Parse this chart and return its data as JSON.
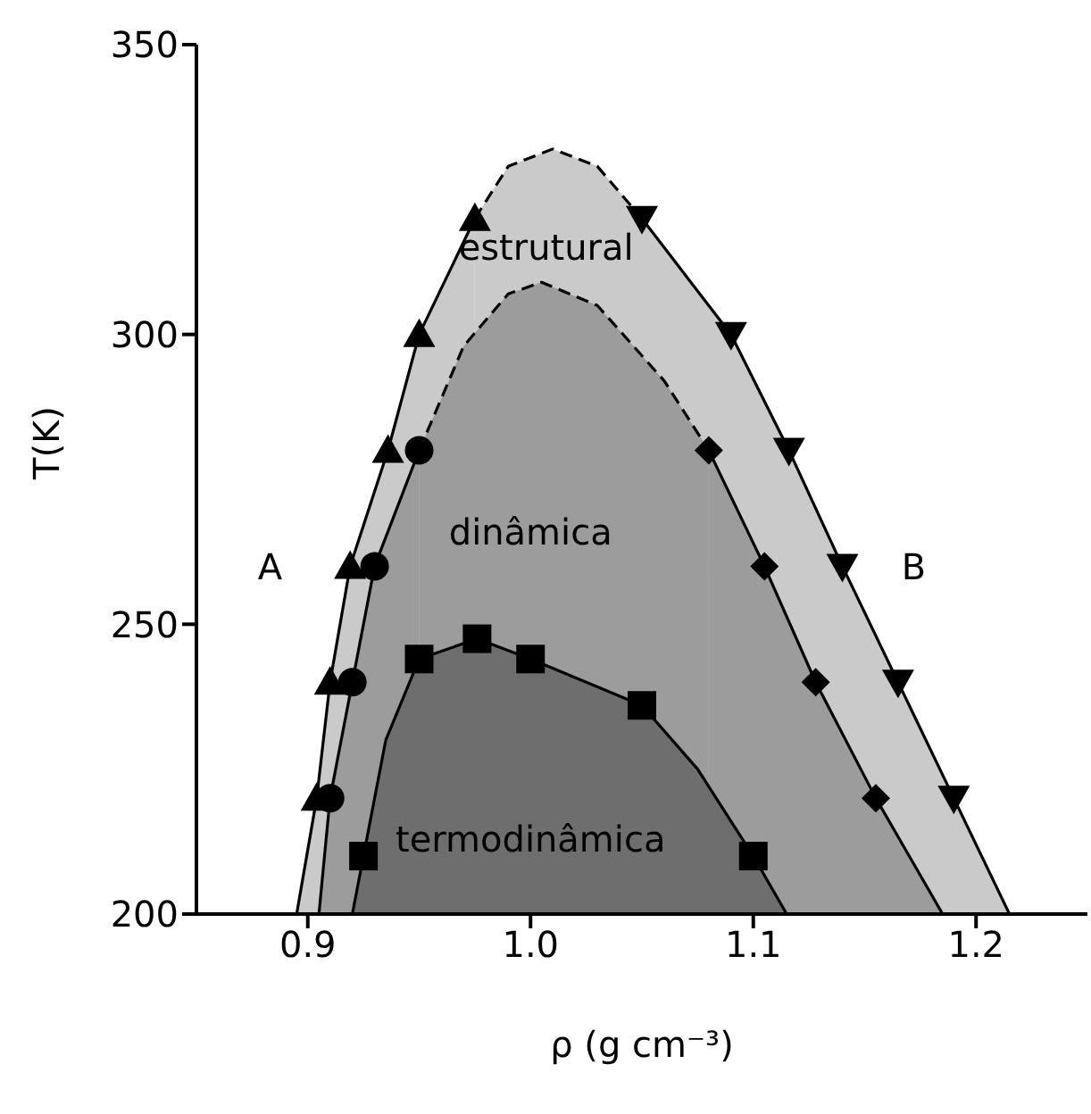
{
  "chart_data": {
    "type": "area",
    "xlabel": "ρ (g cm⁻³)",
    "ylabel": "T(K)",
    "xlim": [
      0.85,
      1.25
    ],
    "xticks": [
      {
        "value": 0.9,
        "label": "0.9"
      },
      {
        "value": 1.0,
        "label": "1.0"
      },
      {
        "value": 1.1,
        "label": "1.1"
      },
      {
        "value": 1.2,
        "label": "1.2"
      }
    ],
    "ylim": [
      200,
      350
    ],
    "yticks": [
      200,
      250,
      300,
      350
    ],
    "grid": false,
    "legend": false,
    "series": [
      {
        "color": "#cacaca",
        "line_style": "solid",
        "x": [
          0.895,
          0.904,
          0.91,
          0.919,
          0.936,
          0.95,
          0.975
        ],
        "values": [
          200,
          220,
          240,
          260,
          280,
          300,
          320
        ]
      },
      {
        "color": "#cacaca",
        "line_style": "dashed",
        "x": [
          0.975,
          0.99,
          1.01,
          1.03,
          1.05
        ],
        "values": [
          320,
          329,
          332,
          329,
          320
        ]
      },
      {
        "color": "#cacaca",
        "line_style": "solid",
        "x": [
          1.05,
          1.09,
          1.116,
          1.14,
          1.165,
          1.19,
          1.215
        ],
        "values": [
          320,
          300,
          280,
          260,
          240,
          220,
          200
        ]
      },
      {
        "color": "#9c9c9c",
        "line_style": "solid",
        "x": [
          0.905,
          0.91,
          0.92,
          0.93,
          0.95
        ],
        "values": [
          200,
          220,
          240,
          260,
          280
        ]
      },
      {
        "color": "#9c9c9c",
        "line_style": "dashed",
        "x": [
          0.95,
          0.97,
          0.99,
          1.005,
          1.03,
          1.06,
          1.08
        ],
        "values": [
          280,
          298,
          307,
          309,
          305,
          292,
          280
        ]
      },
      {
        "color": "#9c9c9c",
        "line_style": "solid",
        "x": [
          1.08,
          1.105,
          1.128,
          1.155,
          1.185
        ],
        "values": [
          280,
          260,
          240,
          220,
          200
        ]
      },
      {
        "color": "#6e6e6e",
        "line_style": "solid",
        "x": [
          0.92,
          0.925,
          0.935,
          0.95,
          0.976,
          1.0,
          1.05,
          1.075,
          1.1,
          1.115
        ],
        "values": [
          200,
          210,
          230,
          244,
          247.5,
          244,
          236,
          225,
          210,
          200
        ]
      },
      {
        "type": "scatter",
        "color": "#000000",
        "marker": "triangle",
        "x": [
          0.904,
          0.91,
          0.919,
          0.936,
          0.95,
          0.975
        ],
        "values": [
          220,
          240,
          260,
          280,
          300,
          320
        ]
      },
      {
        "type": "scatter",
        "color": "#000000",
        "marker": "circle",
        "x": [
          0.91,
          0.92,
          0.93,
          0.95
        ],
        "values": [
          220,
          240,
          260,
          280
        ]
      },
      {
        "type": "scatter",
        "color": "#000000",
        "marker": "triangle-down",
        "x": [
          1.05,
          1.09,
          1.116,
          1.14,
          1.165,
          1.19
        ],
        "values": [
          320,
          300,
          280,
          260,
          240,
          220
        ]
      },
      {
        "type": "scatter",
        "color": "#000000",
        "marker": "diamond",
        "x": [
          1.08,
          1.105,
          1.128,
          1.155
        ],
        "values": [
          280,
          260,
          240,
          220
        ]
      },
      {
        "type": "scatter",
        "color": "#000000",
        "marker": "square",
        "x": [
          0.925,
          0.95,
          0.976,
          1.0,
          1.05,
          1.1
        ],
        "values": [
          210,
          244,
          247.5,
          244,
          236,
          210
        ]
      }
    ],
    "annotations": [
      "estrutural",
      "dinâmica",
      "termodinâmica",
      "A",
      "B"
    ]
  }
}
